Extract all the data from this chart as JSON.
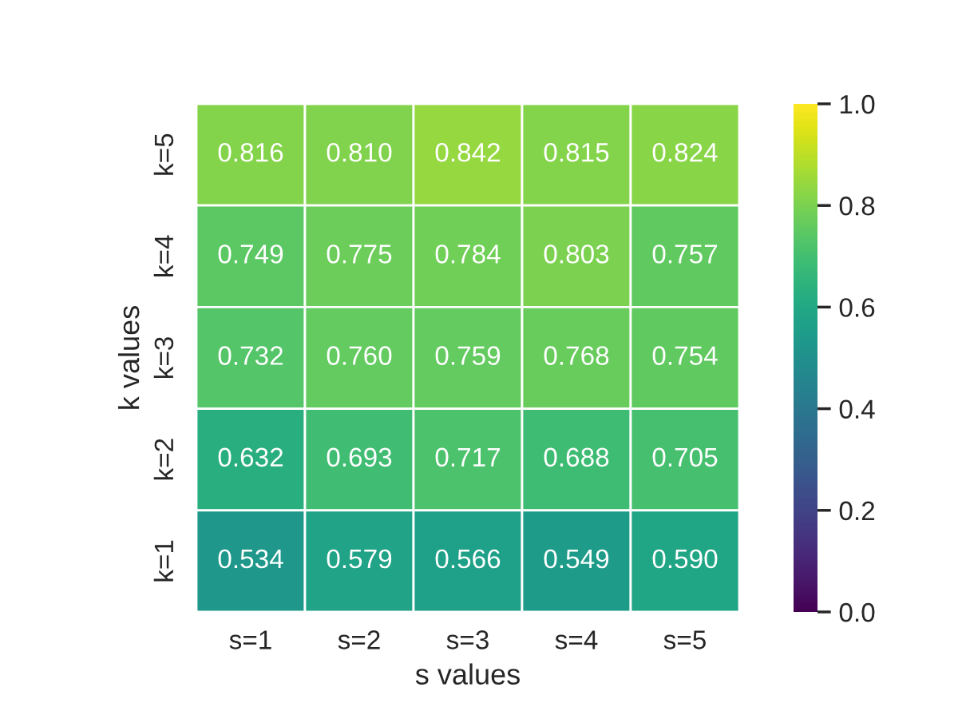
{
  "chart_data": {
    "type": "heatmap",
    "xlabel": "s values",
    "ylabel": "k values",
    "categories": [
      "s=1",
      "s=2",
      "s=3",
      "s=4",
      "s=5"
    ],
    "y_categories": [
      "k=5",
      "k=4",
      "k=3",
      "k=2",
      "k=1"
    ],
    "cells": [
      [
        0.816,
        0.81,
        0.842,
        0.815,
        0.824
      ],
      [
        0.749,
        0.775,
        0.784,
        0.803,
        0.757
      ],
      [
        0.732,
        0.76,
        0.759,
        0.768,
        0.754
      ],
      [
        0.632,
        0.693,
        0.717,
        0.688,
        0.705
      ],
      [
        0.534,
        0.579,
        0.566,
        0.549,
        0.59
      ]
    ],
    "cell_labels": [
      [
        "0.816",
        "0.810",
        "0.842",
        "0.815",
        "0.824"
      ],
      [
        "0.749",
        "0.775",
        "0.784",
        "0.803",
        "0.757"
      ],
      [
        "0.732",
        "0.760",
        "0.759",
        "0.768",
        "0.754"
      ],
      [
        "0.632",
        "0.693",
        "0.717",
        "0.688",
        "0.705"
      ],
      [
        "0.534",
        "0.579",
        "0.566",
        "0.549",
        "0.590"
      ]
    ],
    "clim": [
      0.0,
      1.0
    ],
    "cticks": [
      {
        "value": 0,
        "label": "0.0"
      },
      0.2,
      0.4,
      0.6,
      0.8,
      {
        "value": 1,
        "label": "1.0"
      }
    ]
  }
}
